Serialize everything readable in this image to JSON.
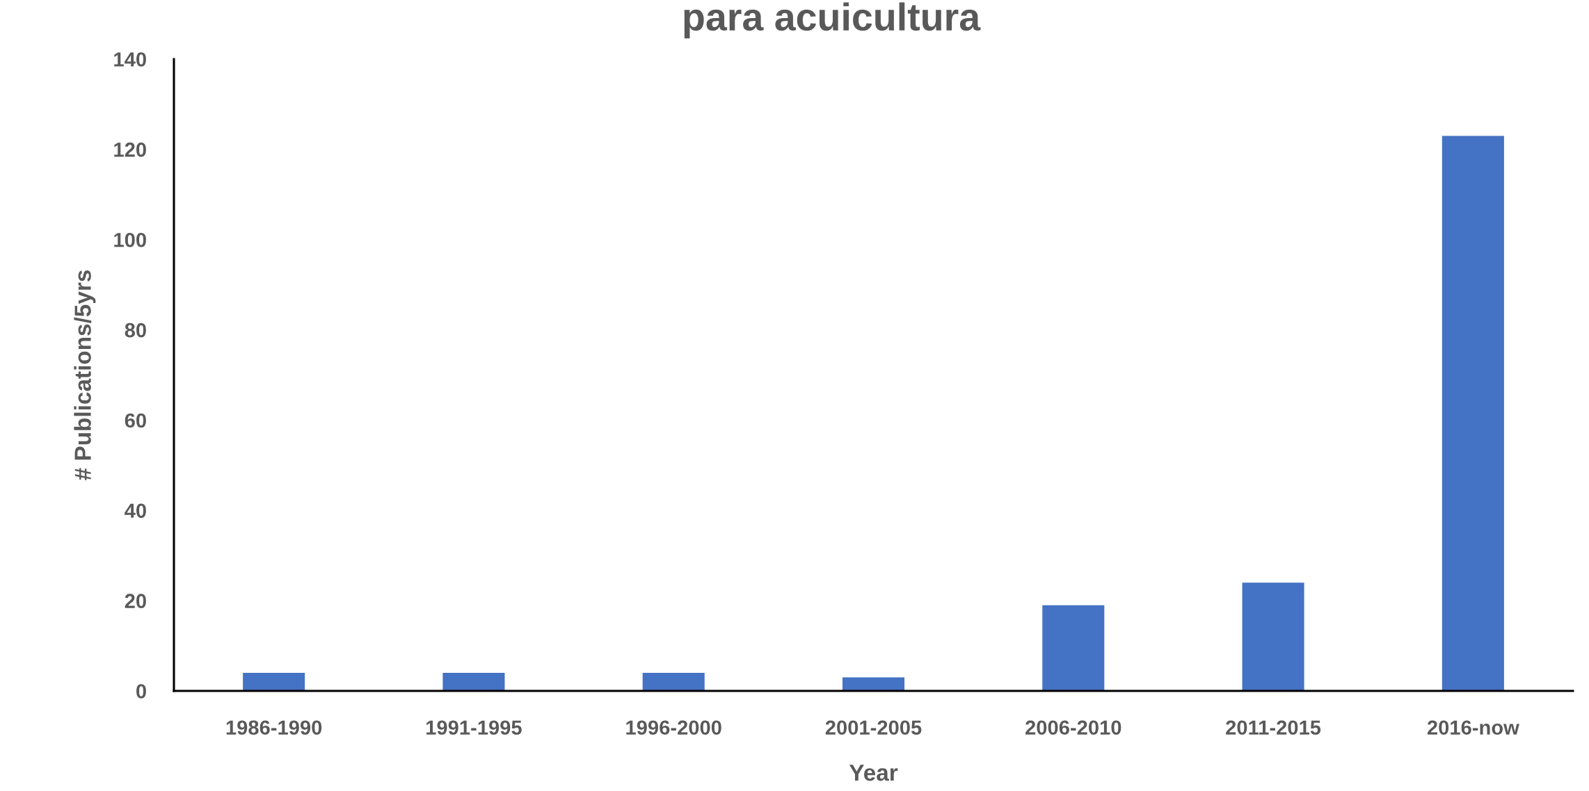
{
  "chart_data": {
    "type": "bar",
    "title": "para acuicultura",
    "xlabel": "Year",
    "ylabel": "# Publications/5yrs",
    "categories": [
      "1986-1990",
      "1991-1995",
      "1996-2000",
      "2001-2005",
      "2006-2010",
      "2011-2015",
      "2016-now"
    ],
    "values": [
      4,
      4,
      4,
      3,
      19,
      24,
      123
    ],
    "color": "#4472c4",
    "ylim": [
      0,
      140
    ],
    "yticks": [
      0,
      20,
      40,
      60,
      80,
      100,
      120,
      140
    ],
    "grid": false,
    "legend": false
  }
}
